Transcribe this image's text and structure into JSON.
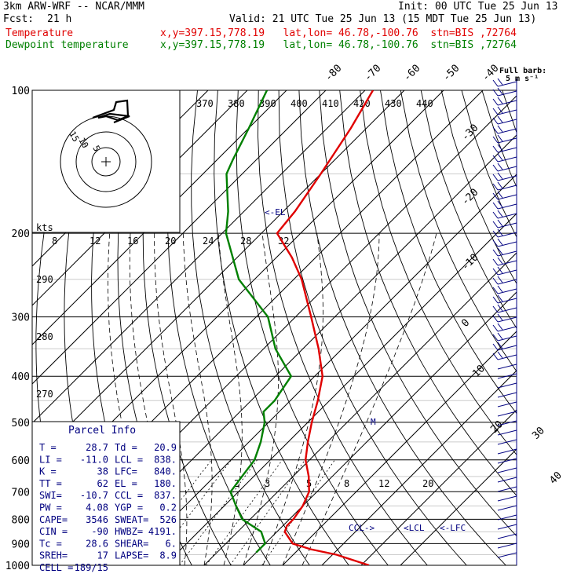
{
  "header": {
    "model": "3km ARW-WRF -- NCAR/MMM",
    "init": "Init: 00 UTC Tue 25 Jun 13",
    "fcst_label": "Fcst:",
    "fcst_value": "21 h",
    "valid": "Valid: 21 UTC Tue 25 Jun 13 (15 MDT Tue 25 Jun 13)",
    "temp_label": "Temperature",
    "dew_label": "Dewpoint temperature",
    "location": "x,y=397.15,778.19   lat,lon= 46.78,-100.76  stn=BIS ,72764"
  },
  "barb_key": {
    "line1": "Full barb:",
    "line2": "5 m s⁻¹"
  },
  "hodograph": {
    "unit": "kts",
    "ring_labels": [
      "5",
      "10",
      "15"
    ]
  },
  "parcel_info": {
    "title": "Parcel Info",
    "rows": [
      [
        "T  =",
        "28.7",
        "Td =",
        "20.9"
      ],
      [
        "LI =",
        "-11.0",
        "LCL =",
        "838."
      ],
      [
        "K  =",
        "38",
        "LFC=",
        "840."
      ],
      [
        "TT =",
        "62",
        "EL =",
        "180."
      ],
      [
        "SWI=",
        "-10.7",
        "CCL =",
        "837."
      ],
      [
        "PW =",
        "4.08",
        "YGP =",
        "0.2"
      ],
      [
        "CAPE=",
        "3546",
        "SWEAT=",
        "526"
      ],
      [
        "CIN =",
        "-90",
        "HWBZ=",
        "4191."
      ],
      [
        "Tc =",
        "28.6",
        "SHEAR=",
        "6."
      ],
      [
        "SREH=",
        "17",
        "LAPSE=",
        "8.9"
      ],
      [
        "CELL =",
        "189/15",
        "",
        ""
      ]
    ]
  },
  "annotations": {
    "el": "<-EL",
    "ccl": "CCL->",
    "lcl": "<LCL",
    "lfc": "<-LFC",
    "m": "M"
  },
  "colors": {
    "temperature": "#e00000",
    "dewpoint": "#008000",
    "barbs": "#000080"
  },
  "chart_data": {
    "type": "line",
    "subtype": "skew-T log-P",
    "pressure_levels": [
      100,
      200,
      300,
      400,
      500,
      600,
      700,
      800,
      900,
      1000
    ],
    "isotherm_labels_top": [
      "-80",
      "-70",
      "-60",
      "-50",
      "-40"
    ],
    "isotherm_labels_right": [
      "-30",
      "-20",
      "-10",
      "0",
      "10",
      "20",
      "30",
      "40"
    ],
    "theta_e_labels": [
      "370",
      "380",
      "390",
      "400",
      "410",
      "420",
      "430",
      "440"
    ],
    "theta_labels": [
      "290",
      "280",
      "270"
    ],
    "mixing_ratio_labels": [
      "2",
      "3",
      "5",
      "8",
      "12",
      "20"
    ],
    "wind_speed_labels": [
      "8",
      "12",
      "16",
      "20",
      "24",
      "28",
      "32"
    ],
    "series": [
      {
        "name": "Temperature",
        "color": "#e00000",
        "points": [
          [
            1000,
            52
          ],
          [
            950,
            41
          ],
          [
            925,
            33
          ],
          [
            900,
            27
          ],
          [
            850,
            22
          ],
          [
            825,
            21
          ],
          [
            800,
            21
          ],
          [
            750,
            20
          ],
          [
            700,
            18
          ],
          [
            650,
            14
          ],
          [
            600,
            9
          ],
          [
            550,
            5
          ],
          [
            500,
            1
          ],
          [
            450,
            -3
          ],
          [
            400,
            -8
          ],
          [
            350,
            -16
          ],
          [
            300,
            -26
          ],
          [
            250,
            -38
          ],
          [
            225,
            -46
          ],
          [
            200,
            -56
          ],
          [
            180,
            -57
          ],
          [
            150,
            -60
          ],
          [
            120,
            -64
          ],
          [
            100,
            -68
          ]
        ]
      },
      {
        "name": "Dewpoint temperature",
        "color": "#008000",
        "points": [
          [
            940,
            20
          ],
          [
            925,
            20
          ],
          [
            900,
            20
          ],
          [
            850,
            16
          ],
          [
            800,
            8
          ],
          [
            750,
            3
          ],
          [
            700,
            -2
          ],
          [
            650,
            -3
          ],
          [
            600,
            -4
          ],
          [
            550,
            -7
          ],
          [
            500,
            -11
          ],
          [
            475,
            -14
          ],
          [
            450,
            -14
          ],
          [
            400,
            -16
          ],
          [
            350,
            -27
          ],
          [
            300,
            -37
          ],
          [
            250,
            -54
          ],
          [
            200,
            -69
          ],
          [
            180,
            -74
          ],
          [
            150,
            -84
          ],
          [
            140,
            -86
          ],
          [
            120,
            -90
          ],
          [
            100,
            -95
          ]
        ]
      }
    ]
  }
}
